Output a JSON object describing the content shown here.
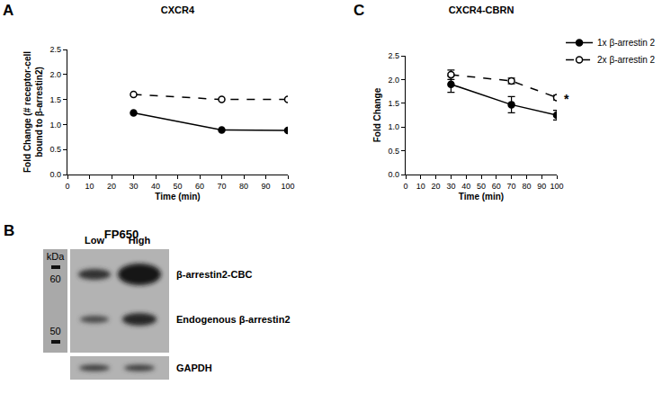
{
  "chart_data": [
    {
      "type": "line",
      "panel": "A",
      "title": "CXCR4",
      "x_label": "Time (min)",
      "y_label": "Fold Change (# receptor-cell\nbound to β-arrestin2)",
      "xlim": [
        0,
        100
      ],
      "xticks": [
        0,
        10,
        20,
        30,
        40,
        50,
        60,
        70,
        80,
        90,
        100
      ],
      "ylim": [
        0,
        2.5
      ],
      "yticks": [
        {
          "value": 0,
          "label": "0.0"
        },
        0.5,
        {
          "value": 1,
          "label": "1.0"
        },
        1.5,
        {
          "value": 2,
          "label": "2.0"
        },
        2.5
      ],
      "grid": false,
      "x": [
        30,
        70,
        100
      ],
      "series": [
        {
          "color": "#000000",
          "marker": "circle",
          "line_style": "solid",
          "values": [
            1.23,
            0.89,
            0.88
          ]
        },
        {
          "color": "#000000",
          "marker": "circle-open",
          "line_style": "dashed",
          "values": [
            1.6,
            1.5,
            1.5
          ]
        }
      ]
    },
    {
      "type": "line",
      "panel": "C",
      "title": "CXCR4-CBRN",
      "x_label": "Time (min)",
      "y_label": "Fold Change",
      "xlim": [
        0,
        100
      ],
      "xticks": [
        0,
        10,
        20,
        30,
        40,
        50,
        60,
        70,
        80,
        90,
        100
      ],
      "ylim": [
        0,
        2.5
      ],
      "yticks": [
        {
          "value": 0,
          "label": "0.0"
        },
        0.5,
        {
          "value": 1,
          "label": "1.0"
        },
        1.5,
        {
          "value": 2,
          "label": "2.0"
        },
        2.5
      ],
      "grid": false,
      "legend": "top right",
      "x": [
        30,
        70,
        100
      ],
      "series": [
        {
          "name": "1x β-arrestin 2",
          "color": "#000000",
          "marker": "circle",
          "line_style": "solid",
          "values": [
            1.9,
            1.47,
            1.25
          ],
          "errors": [
            0.17,
            0.17,
            0.1
          ]
        },
        {
          "name": "2x β-arrestin 2",
          "color": "#000000",
          "marker": "circle-open",
          "line_style": "dashed",
          "values": [
            2.1,
            1.97,
            1.62
          ],
          "errors": [
            0.1,
            0.06,
            0.05
          ]
        }
      ],
      "annotations": [
        {
          "text": "*",
          "x": 100,
          "y": 1.62
        }
      ]
    }
  ],
  "blot": {
    "panel": "B",
    "title": "FP650",
    "marker_unit": "kDa",
    "markers": [
      60,
      50
    ],
    "lanes": [
      "Low",
      "High"
    ],
    "bands": [
      "β-arrestin2-CBC",
      "Endogenous β-arrestin2"
    ],
    "loading_control": "GAPDH"
  }
}
